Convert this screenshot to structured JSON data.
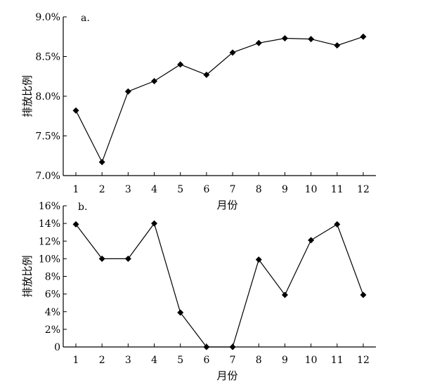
{
  "chart_data": [
    {
      "type": "line",
      "panel_label": "a.",
      "xlabel": "月份",
      "ylabel": "排放比例",
      "x": [
        1,
        2,
        3,
        4,
        5,
        6,
        7,
        8,
        9,
        10,
        11,
        12
      ],
      "x_tick_labels": [
        "1",
        "2",
        "3",
        "4",
        "5",
        "6",
        "7",
        "8",
        "9",
        "10",
        "11",
        "12"
      ],
      "values": [
        7.82,
        7.17,
        8.06,
        8.19,
        8.4,
        8.27,
        8.55,
        8.67,
        8.73,
        8.72,
        8.64,
        8.75
      ],
      "ylim": [
        7.0,
        9.0
      ],
      "y_ticks": [
        7.0,
        7.5,
        8.0,
        8.5,
        9.0
      ],
      "y_tick_labels": [
        "7.0%",
        "7.5%",
        "8.0%",
        "8.5%",
        "9.0%"
      ],
      "marker": "diamond",
      "grid": false
    },
    {
      "type": "line",
      "panel_label": "b.",
      "xlabel": "月份",
      "ylabel": "排放比例",
      "x": [
        1,
        2,
        3,
        4,
        5,
        6,
        7,
        8,
        9,
        10,
        11,
        12
      ],
      "x_tick_labels": [
        "1",
        "2",
        "3",
        "4",
        "5",
        "6",
        "7",
        "8",
        "9",
        "10",
        "11",
        "12"
      ],
      "values": [
        13.9,
        10.0,
        10.0,
        14.0,
        3.9,
        0.0,
        0.0,
        9.9,
        5.9,
        12.1,
        13.9,
        5.9
      ],
      "ylim": [
        0,
        16
      ],
      "y_ticks": [
        0,
        2,
        4,
        6,
        8,
        10,
        12,
        14,
        16
      ],
      "y_tick_labels": [
        "0",
        "2%",
        "4%",
        "6%",
        "8%",
        "10%",
        "12%",
        "14%",
        "16%"
      ],
      "marker": "diamond",
      "grid": false
    }
  ]
}
